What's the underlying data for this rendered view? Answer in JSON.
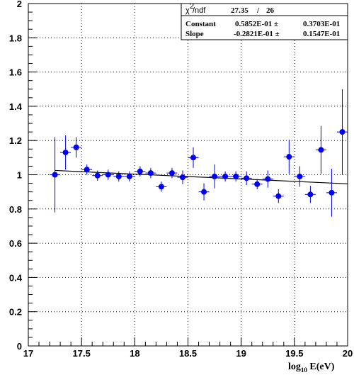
{
  "chart_data": {
    "type": "scatter",
    "xlabel_main": "log",
    "xlabel_sub": "10",
    "xlabel_tail": " E(eV)",
    "ylabel": "",
    "title": "",
    "xlim": [
      17,
      20
    ],
    "ylim": [
      0,
      2
    ],
    "x_ticks": [
      "17",
      "17.5",
      "18",
      "18.5",
      "19",
      "19.5",
      "20"
    ],
    "x_tick_values": [
      17,
      17.5,
      18,
      18.5,
      19,
      19.5,
      20
    ],
    "y_ticks": [
      "0",
      "0.2",
      "0.4",
      "0.6",
      "0.8",
      "1",
      "1.2",
      "1.4",
      "1.6",
      "1.8",
      "2"
    ],
    "y_tick_values": [
      0,
      0.2,
      0.4,
      0.6,
      0.8,
      1.0,
      1.2,
      1.4,
      1.6,
      1.8,
      2.0
    ],
    "grid": true,
    "x_half_width": 0.05,
    "points": [
      {
        "x": 17.25,
        "y": 1.0,
        "err": 0.22
      },
      {
        "x": 17.35,
        "y": 1.13,
        "err": 0.1
      },
      {
        "x": 17.45,
        "y": 1.16,
        "err": 0.06
      },
      {
        "x": 17.55,
        "y": 1.03,
        "err": 0.03
      },
      {
        "x": 17.65,
        "y": 0.995,
        "err": 0.03
      },
      {
        "x": 17.75,
        "y": 1.0,
        "err": 0.03
      },
      {
        "x": 17.85,
        "y": 0.99,
        "err": 0.03
      },
      {
        "x": 17.95,
        "y": 0.99,
        "err": 0.03
      },
      {
        "x": 18.05,
        "y": 1.02,
        "err": 0.03
      },
      {
        "x": 18.15,
        "y": 1.01,
        "err": 0.03
      },
      {
        "x": 18.25,
        "y": 0.93,
        "err": 0.03
      },
      {
        "x": 18.35,
        "y": 1.01,
        "err": 0.03
      },
      {
        "x": 18.45,
        "y": 0.985,
        "err": 0.04
      },
      {
        "x": 18.55,
        "y": 1.1,
        "err": 0.06
      },
      {
        "x": 18.65,
        "y": 0.9,
        "err": 0.05
      },
      {
        "x": 18.75,
        "y": 0.99,
        "err": 0.07
      },
      {
        "x": 18.85,
        "y": 0.99,
        "err": 0.03
      },
      {
        "x": 18.95,
        "y": 0.99,
        "err": 0.03
      },
      {
        "x": 19.05,
        "y": 0.98,
        "err": 0.04
      },
      {
        "x": 19.15,
        "y": 0.945,
        "err": 0.03
      },
      {
        "x": 19.25,
        "y": 0.975,
        "err": 0.05
      },
      {
        "x": 19.35,
        "y": 0.875,
        "err": 0.04
      },
      {
        "x": 19.45,
        "y": 1.105,
        "err": 0.1
      },
      {
        "x": 19.55,
        "y": 0.99,
        "err": 0.06
      },
      {
        "x": 19.65,
        "y": 0.885,
        "err": 0.05
      },
      {
        "x": 19.75,
        "y": 1.145,
        "err": 0.14
      },
      {
        "x": 19.85,
        "y": 0.895,
        "err": 0.14
      },
      {
        "x": 19.95,
        "y": 1.25,
        "err": 0.25
      }
    ],
    "fit_line": {
      "x": [
        17.25,
        20
      ],
      "y": [
        1.025,
        0.947
      ]
    },
    "marker_color": "#0000ee",
    "fit_color": "#000000"
  },
  "stats_box": {
    "chi_label": "/ndf",
    "chi_value": "27.35",
    "slash": "/",
    "ndf_value": "26",
    "rows": [
      {
        "label": "Constant",
        "value": "0.5852E-01 ±",
        "error": "0.3703E-01"
      },
      {
        "label": "Slope",
        "value": "-0.2821E-01 ±",
        "error": "0.1547E-01"
      }
    ]
  }
}
